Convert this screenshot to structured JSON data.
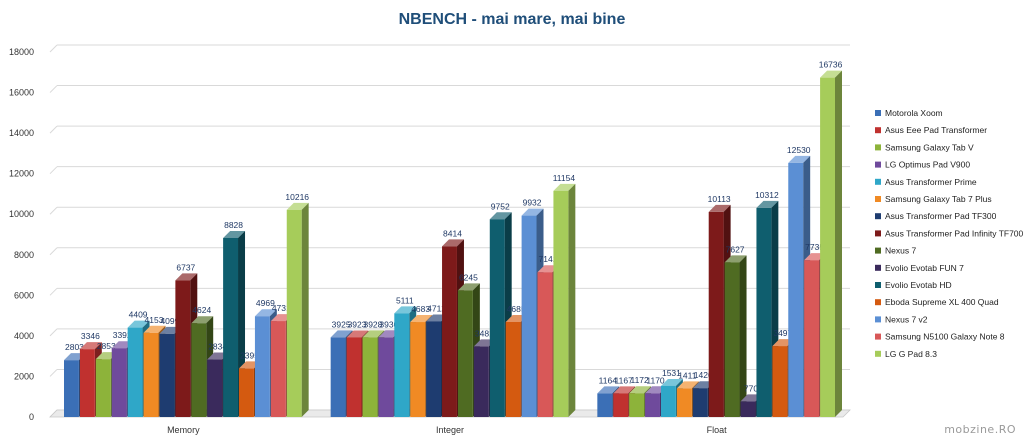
{
  "chart_data": {
    "type": "bar",
    "title": "NBENCH - mai mare, mai bine",
    "xlabel": "",
    "ylabel": "",
    "ylim": [
      0,
      18000
    ],
    "yticks": [
      0,
      2000,
      4000,
      6000,
      8000,
      10000,
      12000,
      14000,
      16000,
      18000
    ],
    "grid": true,
    "legend_position": "right",
    "categories": [
      "Memory",
      "Integer",
      "Float"
    ],
    "series": [
      {
        "name": "Motorola Xoom",
        "color": "#3b6fb6",
        "values": [
          2803,
          3925,
          1164
        ]
      },
      {
        "name": "Asus Eee Pad Transformer",
        "color": "#c0312f",
        "values": [
          3346,
          3923,
          1167
        ]
      },
      {
        "name": "Samsung Galaxy Tab V",
        "color": "#8db33a",
        "values": [
          2853,
          3928,
          1172
        ]
      },
      {
        "name": "LG Optimus Pad V900",
        "color": "#6f4a9c",
        "values": [
          3392,
          3930,
          1170
        ]
      },
      {
        "name": "Asus Transformer Prime",
        "color": "#2fa7c8",
        "values": [
          4409,
          5111,
          1531
        ]
      },
      {
        "name": "Samsung Galaxy Tab 7 Plus",
        "color": "#f08a24",
        "values": [
          4153,
          4683,
          1411
        ]
      },
      {
        "name": "Asus Transformer Pad TF300",
        "color": "#1e3c70",
        "values": [
          4099,
          4712,
          1420
        ]
      },
      {
        "name": "Asus Transformer Pad Infinity TF700",
        "color": "#7d1a1a",
        "values": [
          6737,
          8414,
          10113
        ]
      },
      {
        "name": "Nexus 7",
        "color": "#4f6b22",
        "values": [
          4624,
          6245,
          7627
        ]
      },
      {
        "name": "Evolio Evotab FUN 7",
        "color": "#3a2a5c",
        "values": [
          2834,
          3481,
          770
        ]
      },
      {
        "name": "Evolio Evotab HD",
        "color": "#0f5e6e",
        "values": [
          8828,
          9752,
          10312
        ]
      },
      {
        "name": "Eboda Supreme XL 400 Quad",
        "color": "#d45a10",
        "values": [
          2395,
          4685,
          3497
        ]
      },
      {
        "name": "Nexus 7 v2",
        "color": "#5b8fd4",
        "values": [
          4969,
          9932,
          12530
        ]
      },
      {
        "name": "Samsung N5100 Galaxy Note 8",
        "color": "#d85858",
        "values": [
          4731,
          7141,
          7735
        ]
      },
      {
        "name": "LG G Pad 8.3",
        "color": "#a6cc5a",
        "values": [
          10216,
          11154,
          16736
        ]
      }
    ]
  },
  "watermark": "mobzine.RO"
}
